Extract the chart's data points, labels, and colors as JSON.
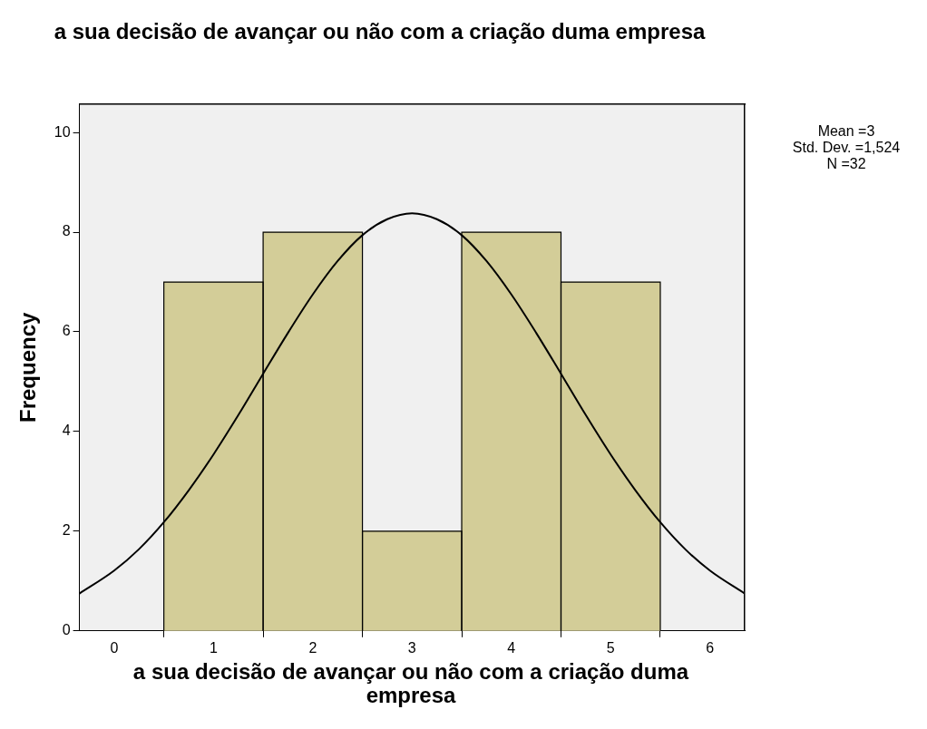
{
  "chart_data": {
    "type": "histogram",
    "title": "a sua decisão de avançar ou não com a criação duma empresa",
    "xlabel": "a sua decisão de avançar ou não com a criação duma empresa",
    "ylabel": "Frequency",
    "bins": [
      0.5,
      1.5,
      2.5,
      3.5,
      4.5,
      5.5
    ],
    "values": [
      7,
      8,
      2,
      8,
      7
    ],
    "color": "#d3cd98",
    "series": [
      {
        "type": "line",
        "color": "#000000",
        "x": [
          -0.35,
          0,
          0.25,
          0.5,
          0.75,
          1,
          1.25,
          1.5,
          1.75,
          2,
          2.25,
          2.5,
          2.75,
          3,
          3.25,
          3.5,
          3.75,
          4,
          4.25,
          4.5,
          4.75,
          5,
          5.25,
          5.5,
          5.75,
          6,
          6.35
        ],
        "values": [
          0.75,
          1.21,
          1.64,
          2.18,
          2.82,
          3.54,
          4.33,
          5.16,
          5.98,
          6.75,
          7.42,
          7.94,
          8.26,
          8.38,
          8.26,
          7.94,
          7.42,
          6.75,
          5.98,
          5.16,
          4.33,
          3.54,
          2.82,
          2.18,
          1.64,
          1.21,
          0.75
        ]
      }
    ],
    "xlim": [
      -0.35,
      6.35
    ],
    "xticks": [
      0,
      1,
      2,
      3,
      4,
      5,
      6
    ],
    "ylim": [
      0,
      10.57
    ],
    "yticks": [
      0,
      2,
      4,
      6,
      8,
      10
    ],
    "annotations": [
      "Mean =3",
      "Std. Dev. =1,524",
      "N =32"
    ]
  }
}
